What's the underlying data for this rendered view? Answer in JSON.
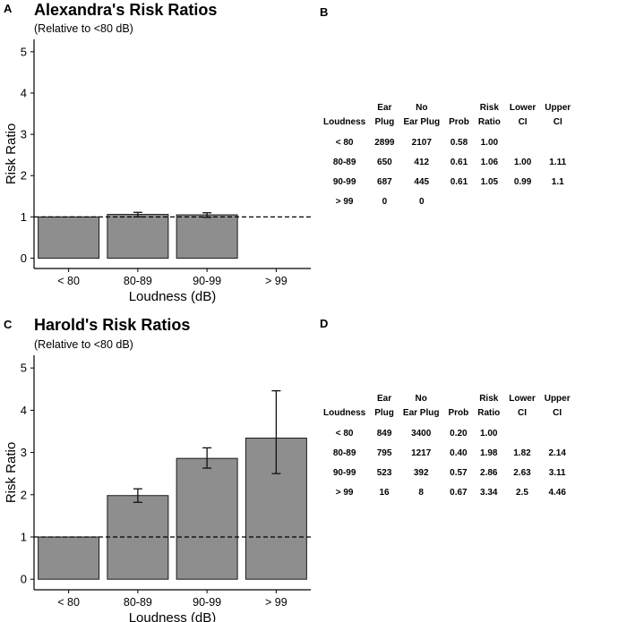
{
  "panels": {
    "a": "A",
    "b": "B",
    "c": "C",
    "d": "D"
  },
  "colors": {
    "bar": "#8e8e8e",
    "bar_stroke": "#1a1a1a",
    "axis": "#000000"
  },
  "chart_data": [
    {
      "type": "bar",
      "title": "Alexandra's Risk Ratios",
      "subtitle": "(Relative to <80 dB)",
      "xlabel": "Loudness (dB)",
      "ylabel": "Risk Ratio",
      "categories": [
        "< 80",
        "80-89",
        "90-99",
        "> 99"
      ],
      "values": [
        1.0,
        1.06,
        1.05,
        null
      ],
      "error_low": [
        null,
        1.0,
        0.99,
        null
      ],
      "error_high": [
        null,
        1.11,
        1.1,
        null
      ],
      "ylim": [
        -0.25,
        5.3
      ],
      "yticks": [
        0,
        1,
        2,
        3,
        4,
        5
      ],
      "reference_line": 1,
      "grid": false
    },
    {
      "type": "bar",
      "title": "Harold's Risk Ratios",
      "subtitle": "(Relative to <80 dB)",
      "xlabel": "Loudness (dB)",
      "ylabel": "Risk Ratio",
      "categories": [
        "< 80",
        "80-89",
        "90-99",
        "> 99"
      ],
      "values": [
        1.0,
        1.98,
        2.86,
        3.34
      ],
      "error_low": [
        null,
        1.82,
        2.63,
        2.5
      ],
      "error_high": [
        null,
        2.14,
        3.11,
        4.46
      ],
      "ylim": [
        -0.25,
        5.3
      ],
      "yticks": [
        0,
        1,
        2,
        3,
        4,
        5
      ],
      "reference_line": 1,
      "grid": false
    }
  ],
  "tables": [
    {
      "headers": [
        [
          "Loudness"
        ],
        [
          "Ear",
          "Plug"
        ],
        [
          "No",
          "Ear Plug"
        ],
        [
          "Prob"
        ],
        [
          "Risk",
          "Ratio"
        ],
        [
          "Lower",
          "CI"
        ],
        [
          "Upper",
          "CI"
        ]
      ],
      "rows": [
        [
          "< 80",
          "2899",
          "2107",
          "0.58",
          "1.00",
          "",
          ""
        ],
        [
          "80-89",
          "650",
          "412",
          "0.61",
          "1.06",
          "1.00",
          "1.11"
        ],
        [
          "90-99",
          "687",
          "445",
          "0.61",
          "1.05",
          "0.99",
          "1.1"
        ],
        [
          "> 99",
          "0",
          "0",
          "",
          "",
          "",
          ""
        ]
      ]
    },
    {
      "headers": [
        [
          "Loudness"
        ],
        [
          "Ear",
          "Plug"
        ],
        [
          "No",
          "Ear Plug"
        ],
        [
          "Prob"
        ],
        [
          "Risk",
          "Ratio"
        ],
        [
          "Lower",
          "CI"
        ],
        [
          "Upper",
          "CI"
        ]
      ],
      "rows": [
        [
          "< 80",
          "849",
          "3400",
          "0.20",
          "1.00",
          "",
          ""
        ],
        [
          "80-89",
          "795",
          "1217",
          "0.40",
          "1.98",
          "1.82",
          "2.14"
        ],
        [
          "90-99",
          "523",
          "392",
          "0.57",
          "2.86",
          "2.63",
          "3.11"
        ],
        [
          "> 99",
          "16",
          "8",
          "0.67",
          "3.34",
          "2.5",
          "4.46"
        ]
      ]
    }
  ]
}
